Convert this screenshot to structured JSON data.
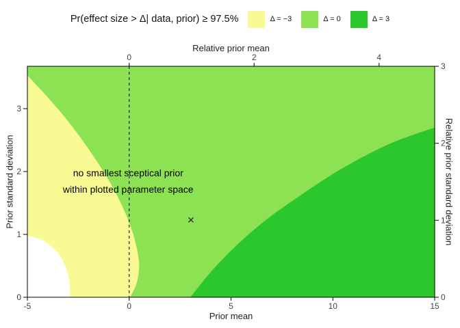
{
  "header": {
    "title": "Pr(effect size > Δ| data, prior) ≥ 97.5%",
    "legend": [
      {
        "label": "Δ = −3",
        "color": "#F9FA93"
      },
      {
        "label": "Δ = 0",
        "color": "#8DE253"
      },
      {
        "label": "Δ = 3",
        "color": "#2CC72C"
      }
    ]
  },
  "chart_data": {
    "type": "region-contour",
    "title": "Pr(effect size > Δ| data, prior) ≥ 97.5%",
    "grid": false,
    "legend_position": "top-right",
    "axes": {
      "bottom": {
        "label": "Prior mean",
        "range": [
          -5,
          15
        ],
        "ticks": [
          -5,
          0,
          5,
          10,
          15
        ]
      },
      "top": {
        "label": "Relative prior mean",
        "range": [
          -1.63,
          4.89
        ],
        "ticks": [
          0,
          2,
          4
        ]
      },
      "left": {
        "label": "Prior standard deviation",
        "range": [
          0,
          3.674
        ],
        "ticks": [
          0,
          1,
          2,
          3
        ]
      },
      "right": {
        "label": "Relative prior standard deviation",
        "range": [
          0,
          3
        ],
        "ticks": [
          0,
          1,
          2,
          3
        ]
      }
    },
    "background_region": {
      "name": "delta-0",
      "delta": 0,
      "color": "#8DE253"
    },
    "regions": [
      {
        "name": "delta-minus-3",
        "delta": -3,
        "color": "#F9FA93",
        "boundary": [
          [
            -5,
            3.53
          ],
          [
            -4,
            3.18
          ],
          [
            -3,
            2.8
          ],
          [
            -2,
            2.36
          ],
          [
            -1,
            1.86
          ],
          [
            -0.3,
            1.42
          ],
          [
            0.18,
            1.02
          ],
          [
            0.44,
            0.66
          ],
          [
            0.48,
            0.44
          ],
          [
            0.34,
            0.2
          ],
          [
            0.04,
            0
          ]
        ],
        "close_path": [
          [
            -5,
            0
          ]
        ]
      },
      {
        "name": "no-region",
        "delta": null,
        "color": "#FFFFFF",
        "boundary": [
          [
            -5,
            0.98
          ],
          [
            -4.4,
            0.93
          ],
          [
            -3.9,
            0.83
          ],
          [
            -3.4,
            0.66
          ],
          [
            -3.05,
            0.42
          ],
          [
            -2.93,
            0.2
          ],
          [
            -2.9,
            0
          ]
        ],
        "close_path": [
          [
            -5,
            0
          ]
        ]
      },
      {
        "name": "delta-3",
        "delta": 3,
        "color": "#2CC72C",
        "boundary": [
          [
            3,
            0
          ],
          [
            4,
            0.4
          ],
          [
            5,
            0.74
          ],
          [
            6,
            1.04
          ],
          [
            7,
            1.3
          ],
          [
            8,
            1.53
          ],
          [
            9,
            1.75
          ],
          [
            10,
            1.96
          ],
          [
            11,
            2.15
          ],
          [
            12,
            2.32
          ],
          [
            13,
            2.47
          ],
          [
            14,
            2.59
          ],
          [
            15,
            2.7
          ]
        ],
        "close_path": [
          [
            15,
            0
          ]
        ]
      }
    ],
    "reference_line": {
      "x": 0,
      "style": "dashed",
      "color": "#000000"
    },
    "marker": {
      "x": 3.03,
      "y": 1.23,
      "symbol": "x",
      "color": "#222222"
    },
    "annotation": {
      "x": -0.05,
      "lines": [
        {
          "text": "no smallest sceptical prior",
          "y": 1.978
        },
        {
          "text": "within plotted parameter space",
          "y": 1.717
        }
      ]
    },
    "style": {
      "border_color": "#000000",
      "tick_color": "#000000",
      "tick_label_color": "#444444",
      "annotation_color": "#000000"
    }
  }
}
